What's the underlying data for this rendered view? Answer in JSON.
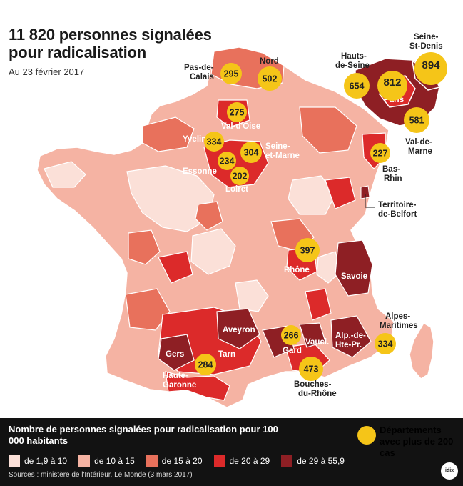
{
  "header": {
    "title": "11 820 personnes signalées pour radicalisation",
    "subtitle": "Au 23 février 2017"
  },
  "colors": {
    "c1": "#fbe0d8",
    "c2": "#f5b3a3",
    "c3": "#e8715c",
    "c4": "#dc2a2a",
    "c5": "#8e1f24",
    "marker": "#f5c518",
    "background_legend": "#121212"
  },
  "map": {
    "markers": [
      {
        "value": "295",
        "label": "Pas-de-Calais"
      },
      {
        "value": "502",
        "label": "Nord"
      },
      {
        "value": "654",
        "label": "Hauts-de-Seine"
      },
      {
        "value": "812",
        "label": "Paris"
      },
      {
        "value": "894",
        "label": "Seine-St-Denis"
      },
      {
        "value": "581",
        "label": "Val-de-Marne"
      },
      {
        "value": "275",
        "label": "Val-d'Oise"
      },
      {
        "value": "334",
        "label": "Yvelines"
      },
      {
        "value": "304",
        "label": "Seine-et-Marne"
      },
      {
        "value": "234",
        "label": "Essonne"
      },
      {
        "value": "202",
        "label": "Loiret"
      },
      {
        "value": "227",
        "label": "Bas-Rhin"
      },
      {
        "value": "397",
        "label": "Rhône"
      },
      {
        "value": "266",
        "label": "Gard"
      },
      {
        "value": "473",
        "label": "Bouches-du-Rhône"
      },
      {
        "value": "284",
        "label": "Haute-Garonne"
      },
      {
        "value": "334",
        "label": "Alpes-Maritimes"
      }
    ],
    "labels": {
      "pas_de_calais_1": "Pas-de-",
      "pas_de_calais_2": "Calais",
      "nord": "Nord",
      "hauts_de_seine_1": "Hauts-",
      "hauts_de_seine_2": "de-Seine",
      "seine_st_denis_1": "Seine-",
      "seine_st_denis_2": "St-Denis",
      "paris": "Paris",
      "val_de_marne_1": "Val-de-",
      "val_de_marne_2": "Marne",
      "val_d_oise": "Val-d'Oise",
      "yvelines": "Yvelines",
      "seine_et_marne_1": "Seine-",
      "seine_et_marne_2": "et-Marne",
      "essonne": "Essonne",
      "loiret": "Loiret",
      "bas_rhin_1": "Bas-",
      "bas_rhin_2": "Rhin",
      "belfort_1": "Territoire-",
      "belfort_2": "de-Belfort",
      "rhone": "Rhône",
      "savoie": "Savoie",
      "alpes_maritimes_1": "Alpes-",
      "alpes_maritimes_2": "Maritimes",
      "aveyron": "Aveyron",
      "gard": "Gard",
      "vaucluse": "Vaucl.",
      "alp_hte_pr_1": "Alp.-de-",
      "alp_hte_pr_2": "Hte-Pr.",
      "gers": "Gers",
      "tarn": "Tarn",
      "haute_garonne_1": "Haute-",
      "haute_garonne_2": "Garonne",
      "bouches_du_rhone_1": "Bouches-",
      "bouches_du_rhone_2": "du-Rhône"
    }
  },
  "legend": {
    "title": "Nombre de personnes signalées pour radicalisation pour 100 000 habitants",
    "items": [
      {
        "label": "de 1,9 à 10",
        "color": "#fbe0d8"
      },
      {
        "label": "de 10 à 15",
        "color": "#f5b3a3"
      },
      {
        "label": "de 15 à 20",
        "color": "#e8715c"
      },
      {
        "label": "de 20 à 29",
        "color": "#dc2a2a"
      },
      {
        "label": "de 29 à 55,9",
        "color": "#8e1f24"
      }
    ],
    "marker_label": "Départements avec plus de 200 cas",
    "sources": "Sources : ministère de l'Intérieur, Le Monde (3 mars 2017)",
    "logo": "idix"
  }
}
